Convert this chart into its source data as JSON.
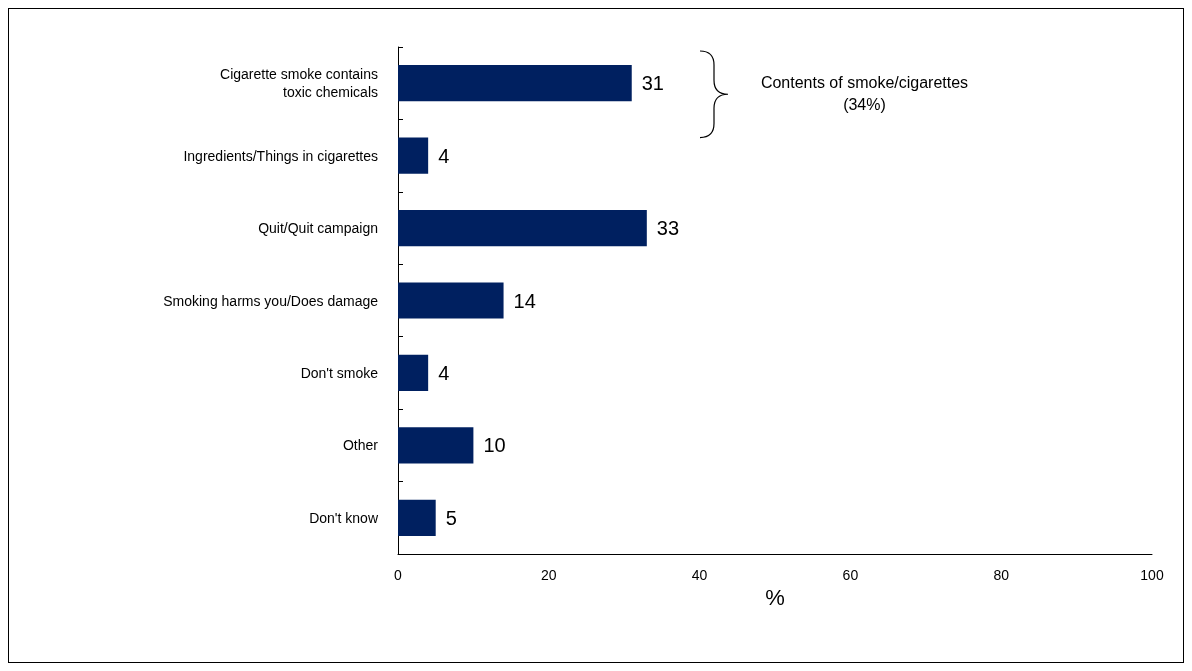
{
  "chart_data": {
    "type": "bar",
    "orientation": "horizontal",
    "xlabel": "%",
    "categories": [
      "Cigarette smoke contains\ntoxic chemicals",
      "Ingredients/Things in cigarettes",
      "Quit/Quit campaign",
      "Smoking harms you/Does damage",
      "Don't smoke",
      "Other",
      "Don't know"
    ],
    "values": [
      31,
      4,
      33,
      14,
      4,
      10,
      5
    ],
    "color": "#002060",
    "data_labels": true,
    "xlim": [
      0,
      100
    ],
    "xticks": [
      0,
      20,
      40,
      60,
      80,
      100
    ],
    "grid": false,
    "annotations": [
      "Contents of smoke/cigarettes\n(34%)"
    ]
  }
}
